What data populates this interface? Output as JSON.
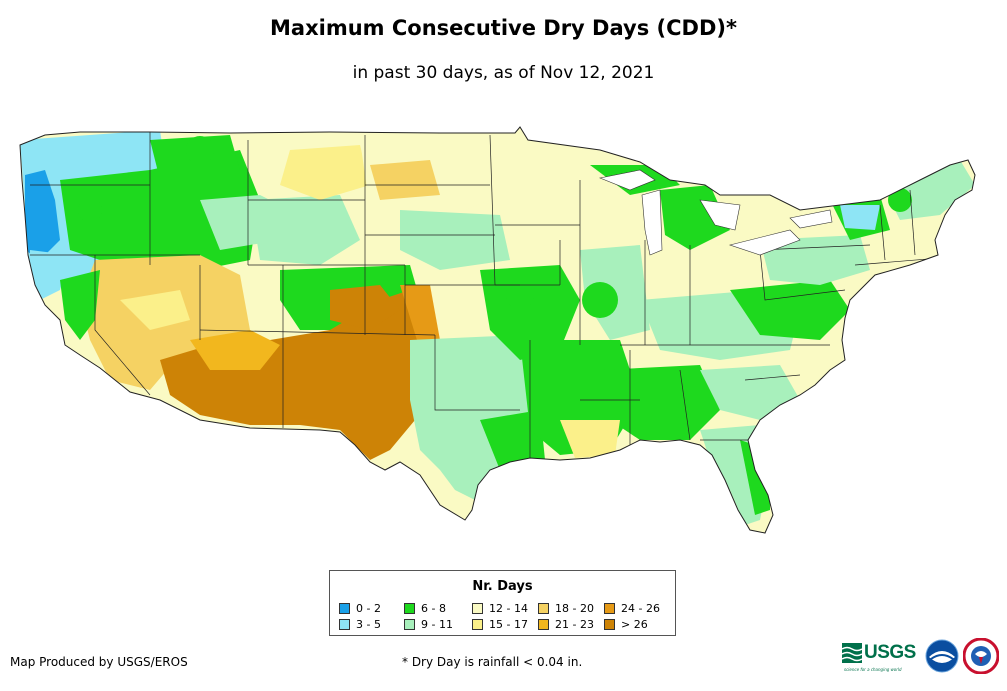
{
  "title": "Maximum Consecutive Dry Days (CDD)*",
  "subtitle": "in past 30 days, as of Nov 12, 2021",
  "legend": {
    "title": "Nr. Days",
    "items": [
      {
        "label": "0 - 2",
        "color": "#1aa0e8"
      },
      {
        "label": "3 - 5",
        "color": "#8ee5f5"
      },
      {
        "label": "6 - 8",
        "color": "#1ed91e"
      },
      {
        "label": "9 - 11",
        "color": "#a8f0bc"
      },
      {
        "label": "12 - 14",
        "color": "#fafac4"
      },
      {
        "label": "15 - 17",
        "color": "#fbf08a"
      },
      {
        "label": "18 - 20",
        "color": "#f5d263"
      },
      {
        "label": "21 - 23",
        "color": "#f2b71e"
      },
      {
        "label": "24 - 26",
        "color": "#e69a16"
      },
      {
        "label": "> 26",
        "color": "#cd8306"
      }
    ]
  },
  "credit": "Map Produced by USGS/EROS",
  "footnote": "* Dry Day is rainfall < 0.04 in.",
  "logos": {
    "usgs": "USGS",
    "usgs_tagline": "science for a changing world",
    "noaa": "NOAA",
    "nws": "National Weather Service"
  }
}
